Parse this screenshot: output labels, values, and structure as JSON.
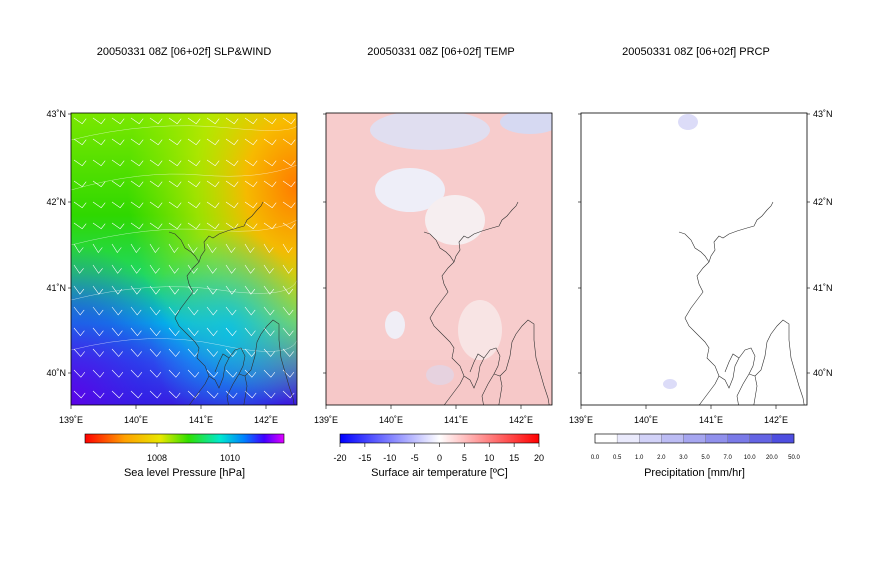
{
  "panels": [
    {
      "title": "20050331 08Z [06+02f] SLP&WIND",
      "colorbar_label": "Sea level Pressure [hPa]",
      "colorbar_ticks": [
        "1008",
        "1010"
      ],
      "palette": "rainbow-reversed"
    },
    {
      "title": "20050331 08Z [06+02f] TEMP",
      "colorbar_label": "Surface air temperature [ºC]",
      "colorbar_ticks": [
        "-20",
        "-15",
        "-10",
        "-5",
        "0",
        "5",
        "10",
        "15",
        "20"
      ],
      "palette": "blue-white-red"
    },
    {
      "title": "20050331 08Z [06+02f] PRCP",
      "colorbar_label": "Precipitation [mm/hr]",
      "colorbar_ticks": [
        "0.0",
        "0.5",
        "1.0",
        "2.0",
        "3.0",
        "5.0",
        "7.0",
        "10.0",
        "20.0",
        "50.0"
      ],
      "palette": "white-blue"
    }
  ],
  "axes": {
    "lon_ticks": [
      "139˚E",
      "140˚E",
      "141˚E",
      "142˚E"
    ],
    "lat_ticks": [
      "43˚N",
      "42˚N",
      "41˚N",
      "40˚N"
    ]
  },
  "chart_data": [
    {
      "type": "heatmap",
      "title": "20050331 08Z [06+02f] SLP&WIND",
      "field": "sea level pressure",
      "unit": "hPa",
      "xlim": [
        139,
        142.5
      ],
      "ylim": [
        39.6,
        43
      ],
      "colorbar_ticks": [
        1008,
        1010
      ],
      "description_values": {
        "northeast_low_hPa": 1006.5,
        "southwest_high_hPa": 1011
      }
    },
    {
      "type": "heatmap",
      "title": "20050331 08Z [06+02f] TEMP",
      "field": "surface air temperature",
      "unit": "ºC",
      "xlim": [
        139,
        142.5
      ],
      "ylim": [
        39.6,
        43
      ],
      "colorbar_ticks": [
        -20,
        -15,
        -10,
        -5,
        0,
        5,
        10,
        15,
        20
      ]
    },
    {
      "type": "heatmap",
      "title": "20050331 08Z [06+02f] PRCP",
      "field": "precipitation",
      "unit": "mm/hr",
      "xlim": [
        139,
        142.5
      ],
      "ylim": [
        39.6,
        43
      ],
      "colorbar_ticks": [
        0.0,
        0.5,
        1.0,
        2.0,
        3.0,
        5.0,
        7.0,
        10.0,
        20.0,
        50.0
      ]
    }
  ]
}
